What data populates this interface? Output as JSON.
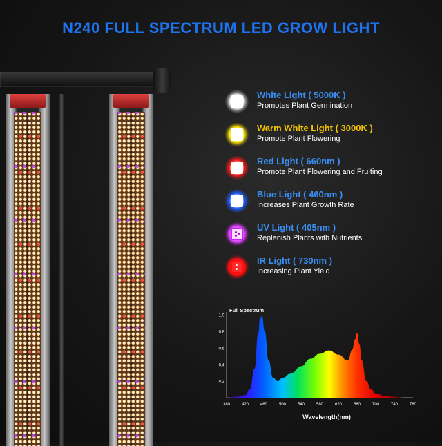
{
  "title": "N240 FULL SPECTRUM LED GROW LIGHT",
  "legend": [
    {
      "name": "White Light ( 5000K )",
      "desc": "Promotes Plant Germination",
      "color": "#3a8ff5",
      "glow": "#ffffff",
      "icon": "white-light-icon"
    },
    {
      "name": "Warm White Light ( 3000K )",
      "desc": "Promote Plant Flowering",
      "color": "#f5c400",
      "glow": "#ffe400",
      "icon": "warm-white-light-icon"
    },
    {
      "name": "Red Light ( 660nm )",
      "desc": "Promote Plant Flowering and Fruiting",
      "color": "#3a8ff5",
      "glow": "#ff1a1a",
      "icon": "red-light-icon"
    },
    {
      "name": "Blue Light ( 460nm )",
      "desc": "Increases Plant Growth Rate",
      "color": "#3a8ff5",
      "glow": "#1f5dff",
      "icon": "blue-light-icon"
    },
    {
      "name": "UV Light ( 405nm )",
      "desc": "Replenish Plants with Nutrients",
      "color": "#3a8ff5",
      "glow": "#d020ff",
      "icon": "uv-light-icon"
    },
    {
      "name": "IR Light ( 730nm )",
      "desc": "Increasing Plant Yield",
      "color": "#3a8ff5",
      "glow": "#ff0a0a",
      "icon": "ir-light-icon"
    }
  ],
  "chart_data": {
    "type": "area",
    "title": "Full Spectrum",
    "xlabel": "Wavelength(nm)",
    "ylabel": "",
    "xlim": [
      380,
      780
    ],
    "ylim": [
      0,
      1.0
    ],
    "xticks": [
      380,
      420,
      460,
      500,
      540,
      580,
      620,
      660,
      700,
      740,
      780
    ],
    "yticks": [
      0.2,
      0.4,
      0.6,
      0.8,
      1.0
    ],
    "x": [
      380,
      400,
      420,
      430,
      440,
      448,
      452,
      456,
      462,
      470,
      480,
      490,
      500,
      520,
      540,
      560,
      580,
      600,
      620,
      640,
      650,
      655,
      660,
      665,
      670,
      680,
      690,
      700,
      720,
      740,
      760,
      780
    ],
    "values": [
      0.0,
      0.01,
      0.03,
      0.1,
      0.35,
      0.78,
      0.97,
      0.98,
      0.8,
      0.45,
      0.24,
      0.2,
      0.24,
      0.3,
      0.38,
      0.47,
      0.53,
      0.57,
      0.52,
      0.45,
      0.58,
      0.7,
      0.78,
      0.65,
      0.45,
      0.2,
      0.1,
      0.05,
      0.02,
      0.01,
      0.0,
      0.0
    ]
  }
}
